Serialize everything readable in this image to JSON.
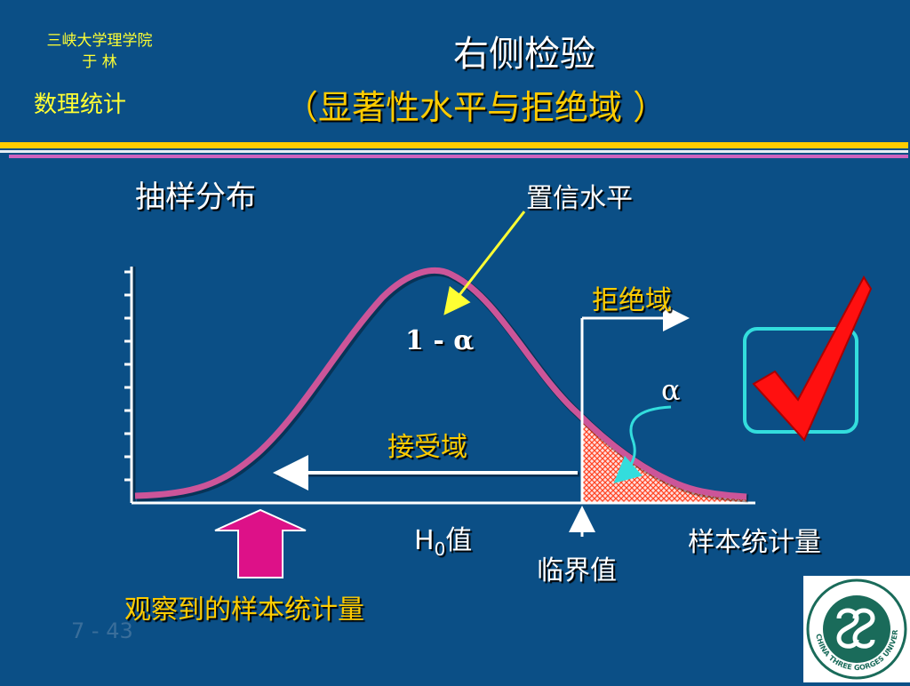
{
  "header": {
    "school": "三峡大学理学院",
    "author": "于  林",
    "course": "数理统计",
    "title": "右侧检验",
    "subtitle": "（显著性水平与拒绝域 ）"
  },
  "diagram": {
    "sampling_distribution": "抽样分布",
    "confidence_level": "置信水平",
    "rejection_region": "拒绝域",
    "one_minus_alpha": "1 - α",
    "alpha": "α",
    "acceptance_region": "接受域",
    "h0_value_prefix": "H",
    "h0_value_sub": "0",
    "h0_value_suffix": "值",
    "critical_value": "临界值",
    "sample_statistic": "样本统计量",
    "observed_statistic": "观察到的样本统计量"
  },
  "page_number": "7 - 43",
  "logo": {
    "icon": "china-three-gorges-university-logo",
    "ring_text": "CHINA THREE GORGES UNIVERSITY"
  },
  "colors": {
    "background": "#0b4f86",
    "curve": "#cc5599",
    "label_yellow": "#ffcc00",
    "rejection_fill": "#ff5522",
    "check_red": "#ff1010",
    "box_cyan": "#33dddd",
    "arrow_magenta": "#dd1188"
  }
}
